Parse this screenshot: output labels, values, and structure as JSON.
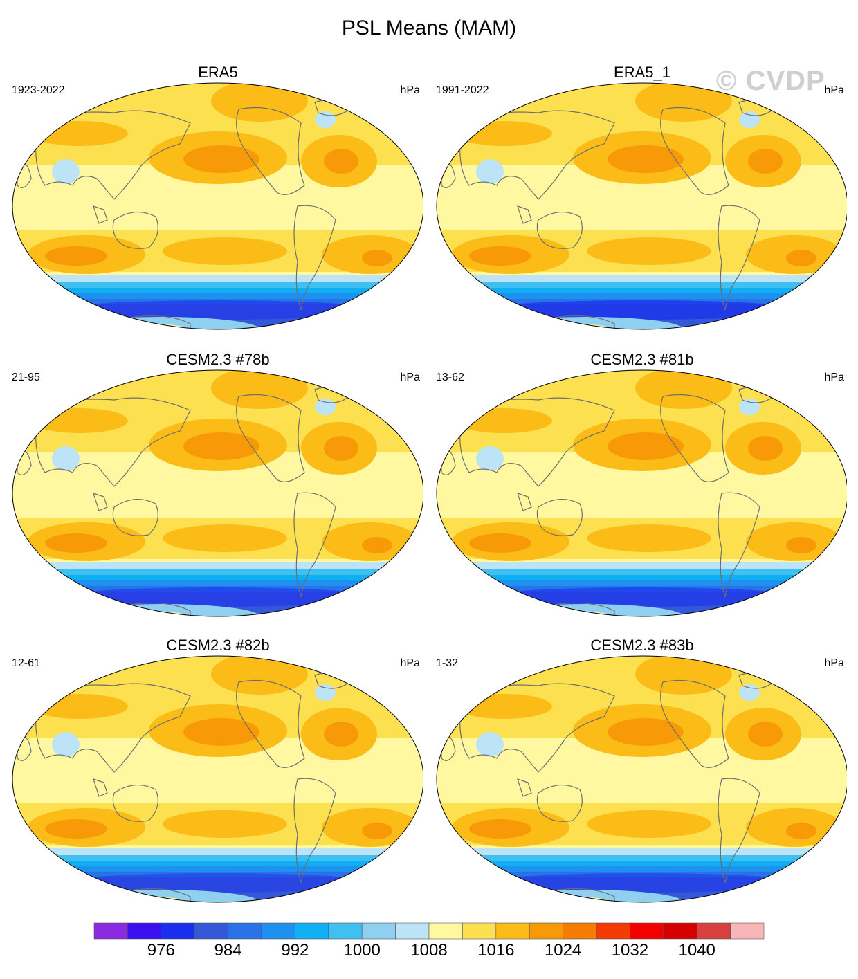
{
  "title": "PSL Means (MAM)",
  "watermark": "© CVDP",
  "panels": [
    {
      "title": "ERA5",
      "period": "1923-2022",
      "units": "hPa",
      "polar_low": 0.55
    },
    {
      "title": "ERA5_1",
      "period": "1991-2022",
      "units": "hPa",
      "polar_low": 0.7
    },
    {
      "title": "CESM2.3 #78b",
      "period": "21-95",
      "units": "hPa",
      "polar_low": 0.55
    },
    {
      "title": "CESM2.3 #81b",
      "period": "13-62",
      "units": "hPa",
      "polar_low": 0.6
    },
    {
      "title": "CESM2.3 #82b",
      "period": "12-61",
      "units": "hPa",
      "polar_low": 0.45
    },
    {
      "title": "CESM2.3 #83b",
      "period": "1-32",
      "units": "hPa",
      "polar_low": 0.5
    }
  ],
  "colorbar": {
    "colors": [
      "#8a2be2",
      "#3a10f0",
      "#1a2ef0",
      "#3558d8",
      "#2a72e8",
      "#1e90f0",
      "#10aef2",
      "#40c0f0",
      "#8fcfef",
      "#bde3f6",
      "#fff8a0",
      "#fde050",
      "#fbbc18",
      "#f89a08",
      "#f57c00",
      "#f33a00",
      "#f20000",
      "#d40000",
      "#d94040",
      "#f8b6b6"
    ],
    "labels": [
      "976",
      "984",
      "992",
      "1000",
      "1008",
      "1016",
      "1024",
      "1032",
      "1040"
    ]
  }
}
